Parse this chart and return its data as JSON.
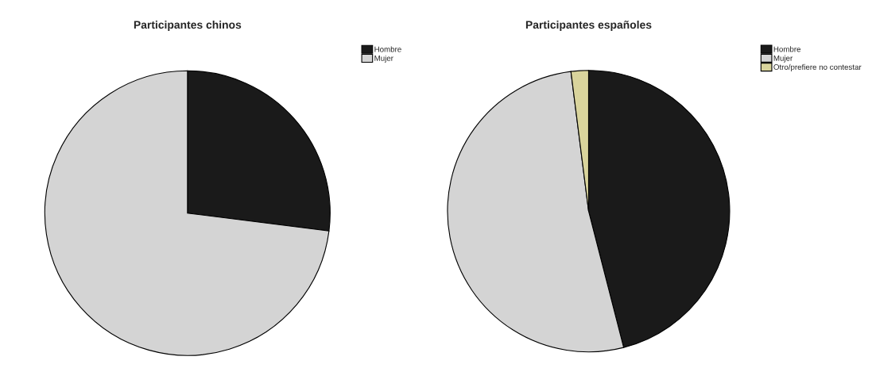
{
  "chart_data": [
    {
      "type": "pie",
      "title": "Participantes chinos",
      "categories": [
        "Hombre",
        "Mujer"
      ],
      "values": [
        27,
        73
      ],
      "colors": [
        "#1a1a1a",
        "#d4d4d4"
      ],
      "legend": "top right"
    },
    {
      "type": "pie",
      "title": "Participantes españoles",
      "categories": [
        "Hombre",
        "Mujer",
        "Otro/prefiere no contestar"
      ],
      "values": [
        46,
        52,
        2
      ],
      "colors": [
        "#1a1a1a",
        "#d4d4d4",
        "#d9d49c"
      ],
      "legend": "top right"
    }
  ]
}
